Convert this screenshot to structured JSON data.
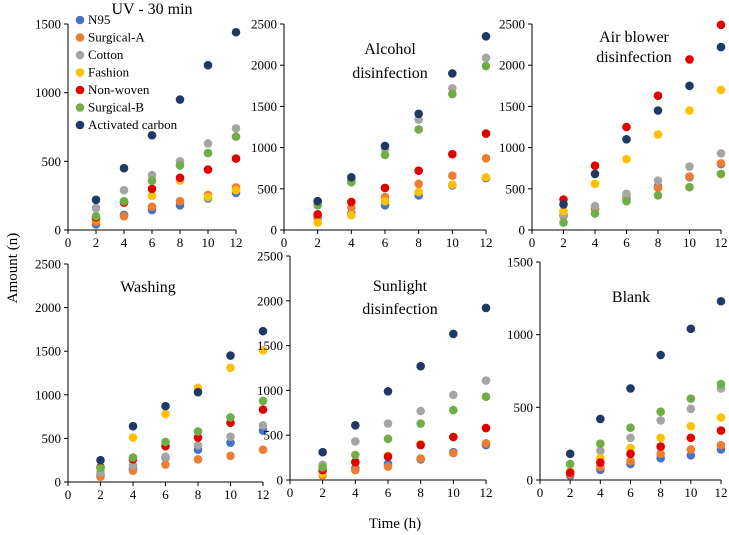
{
  "figure": {
    "xlabel": "Time (h)",
    "ylabel": "Amount (n)"
  },
  "series_colors": {
    "N95": "#4472C4",
    "Surgical-A": "#ED7D31",
    "Cotton": "#A5A5A5",
    "Fashion": "#FFC000",
    "Non-woven": "#E00000",
    "Surgical-B": "#70AD47",
    "Activated carbon": "#203864"
  },
  "chart_data": [
    {
      "type": "scatter",
      "title": [
        "UV - 30 min"
      ],
      "x": [
        2,
        4,
        6,
        8,
        10,
        12
      ],
      "xlim": [
        0,
        12
      ],
      "xticks": [
        0,
        2,
        4,
        6,
        8,
        10,
        12
      ],
      "ylim": [
        0,
        1500
      ],
      "yticks": [
        0,
        500,
        1000,
        1500
      ],
      "legend": "top-left",
      "series": [
        {
          "name": "N95",
          "values": [
            40,
            110,
            145,
            180,
            230,
            270
          ]
        },
        {
          "name": "Surgical-A",
          "values": [
            60,
            100,
            170,
            210,
            255,
            310
          ]
        },
        {
          "name": "Cotton",
          "values": [
            160,
            290,
            400,
            500,
            630,
            740
          ]
        },
        {
          "name": "Fashion",
          "values": [
            80,
            200,
            250,
            360,
            240,
            290
          ]
        },
        {
          "name": "Non-woven",
          "values": [
            90,
            200,
            300,
            380,
            440,
            520
          ]
        },
        {
          "name": "Surgical-B",
          "values": [
            100,
            210,
            360,
            470,
            560,
            680
          ]
        },
        {
          "name": "Activated carbon",
          "values": [
            220,
            450,
            690,
            950,
            1200,
            1440
          ]
        }
      ]
    },
    {
      "type": "scatter",
      "title": [
        "Alcohol",
        "disinfection"
      ],
      "x": [
        2,
        4,
        6,
        8,
        10,
        12
      ],
      "xlim": [
        0,
        12
      ],
      "xticks": [
        0,
        2,
        4,
        6,
        8,
        10,
        12
      ],
      "ylim": [
        0,
        2500
      ],
      "yticks": [
        0,
        500,
        1000,
        1500,
        2000,
        2500
      ],
      "series": [
        {
          "name": "N95",
          "values": [
            150,
            200,
            300,
            420,
            540,
            630
          ]
        },
        {
          "name": "Surgical-A",
          "values": [
            170,
            270,
            400,
            560,
            660,
            870
          ]
        },
        {
          "name": "Cotton",
          "values": [
            350,
            600,
            980,
            1340,
            1720,
            2090
          ]
        },
        {
          "name": "Fashion",
          "values": [
            90,
            180,
            350,
            460,
            550,
            640
          ]
        },
        {
          "name": "Non-woven",
          "values": [
            190,
            340,
            510,
            720,
            920,
            1170
          ]
        },
        {
          "name": "Surgical-B",
          "values": [
            300,
            580,
            910,
            1220,
            1650,
            1990
          ]
        },
        {
          "name": "Activated carbon",
          "values": [
            350,
            640,
            1020,
            1410,
            1900,
            2350
          ]
        }
      ]
    },
    {
      "type": "scatter",
      "title": [
        "Air blower",
        "disinfection"
      ],
      "x": [
        2,
        4,
        6,
        8,
        10,
        12
      ],
      "xlim": [
        0,
        12
      ],
      "xticks": [
        0,
        2,
        4,
        6,
        8,
        10,
        12
      ],
      "ylim": [
        0,
        2500
      ],
      "yticks": [
        0,
        500,
        1000,
        1500,
        2000,
        2500
      ],
      "series": [
        {
          "name": "N95",
          "values": [
            170,
            250,
            370,
            530,
            640,
            800
          ]
        },
        {
          "name": "Surgical-A",
          "values": [
            180,
            250,
            410,
            510,
            650,
            810
          ]
        },
        {
          "name": "Cotton",
          "values": [
            190,
            290,
            440,
            600,
            770,
            930
          ]
        },
        {
          "name": "Fashion",
          "values": [
            230,
            560,
            860,
            1160,
            1450,
            1700
          ]
        },
        {
          "name": "Non-woven",
          "values": [
            370,
            780,
            1250,
            1630,
            2070,
            2490
          ]
        },
        {
          "name": "Surgical-B",
          "values": [
            90,
            200,
            350,
            420,
            520,
            680
          ]
        },
        {
          "name": "Activated carbon",
          "values": [
            310,
            680,
            1100,
            1450,
            1750,
            2220
          ]
        }
      ]
    },
    {
      "type": "scatter",
      "title": [
        "Washing"
      ],
      "x": [
        2,
        4,
        6,
        8,
        10,
        12
      ],
      "xlim": [
        0,
        12
      ],
      "xticks": [
        0,
        2,
        4,
        6,
        8,
        10,
        12
      ],
      "ylim": [
        0,
        2500
      ],
      "yticks": [
        0,
        500,
        1000,
        1500,
        2000,
        2500
      ],
      "series": [
        {
          "name": "N95",
          "values": [
            80,
            150,
            280,
            370,
            450,
            590
          ]
        },
        {
          "name": "Surgical-A",
          "values": [
            60,
            130,
            200,
            260,
            300,
            370
          ]
        },
        {
          "name": "Cotton",
          "values": [
            110,
            190,
            290,
            420,
            520,
            650
          ]
        },
        {
          "name": "Fashion",
          "values": [
            160,
            510,
            780,
            1080,
            1310,
            1510
          ]
        },
        {
          "name": "Non-woven",
          "values": [
            170,
            260,
            410,
            510,
            680,
            830
          ]
        },
        {
          "name": "Surgical-B",
          "values": [
            160,
            280,
            460,
            580,
            740,
            930
          ]
        },
        {
          "name": "Activated carbon",
          "values": [
            250,
            640,
            870,
            1030,
            1450,
            1730
          ]
        }
      ]
    },
    {
      "type": "scatter",
      "title": [
        "Sunlight",
        "disinfection"
      ],
      "x": [
        2,
        4,
        6,
        8,
        10,
        12
      ],
      "xlim": [
        0,
        12
      ],
      "xticks": [
        0,
        2,
        4,
        6,
        8,
        10,
        12
      ],
      "ylim": [
        0,
        2500
      ],
      "yticks": [
        0,
        500,
        1000,
        1500,
        2000,
        2500
      ],
      "series": [
        {
          "name": "N95",
          "values": [
            60,
            130,
            180,
            230,
            310,
            390
          ]
        },
        {
          "name": "Surgical-A",
          "values": [
            50,
            110,
            150,
            240,
            300,
            410
          ]
        },
        {
          "name": "Cotton",
          "values": [
            170,
            430,
            630,
            770,
            950,
            1110
          ]
        },
        {
          "name": "Fashion",
          "values": [
            70,
            200,
            270,
            400,
            480,
            580
          ]
        },
        {
          "name": "Non-woven",
          "values": [
            110,
            200,
            260,
            390,
            480,
            580
          ]
        },
        {
          "name": "Surgical-B",
          "values": [
            140,
            280,
            460,
            630,
            780,
            930
          ]
        },
        {
          "name": "Activated carbon",
          "values": [
            310,
            610,
            990,
            1270,
            1630,
            1920
          ]
        }
      ]
    },
    {
      "type": "scatter",
      "title": [
        "Blank"
      ],
      "x": [
        2,
        4,
        6,
        8,
        10,
        12
      ],
      "xlim": [
        0,
        12
      ],
      "xticks": [
        0,
        2,
        4,
        6,
        8,
        10,
        12
      ],
      "ylim": [
        0,
        1500
      ],
      "yticks": [
        0,
        500,
        1000,
        1500
      ],
      "series": [
        {
          "name": "N95",
          "values": [
            30,
            70,
            110,
            150,
            170,
            210
          ]
        },
        {
          "name": "Surgical-A",
          "values": [
            40,
            90,
            130,
            180,
            210,
            240
          ]
        },
        {
          "name": "Cotton",
          "values": [
            110,
            200,
            290,
            410,
            490,
            630
          ]
        },
        {
          "name": "Fashion",
          "values": [
            60,
            150,
            220,
            290,
            370,
            430
          ]
        },
        {
          "name": "Non-woven",
          "values": [
            50,
            120,
            180,
            230,
            290,
            340
          ]
        },
        {
          "name": "Surgical-B",
          "values": [
            110,
            250,
            360,
            470,
            560,
            660
          ]
        },
        {
          "name": "Activated carbon",
          "values": [
            180,
            420,
            630,
            860,
            1040,
            1230
          ]
        }
      ]
    }
  ]
}
